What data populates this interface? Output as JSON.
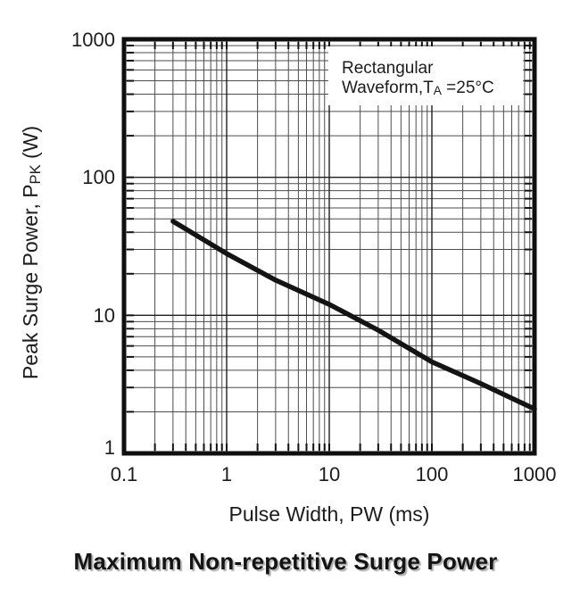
{
  "figure_title": "Maximum Non-repetitive Surge Power",
  "chart_data": {
    "type": "line",
    "title": "Maximum Non-repetitive Surge Power",
    "xlabel": "Pulse Width, PW (ms)",
    "ylabel": "Peak Surge Power, PPK (W)",
    "ylabel_parts": {
      "pre": "Peak Surge Power, P",
      "sub": "PK",
      "post": " (W)"
    },
    "x_scale": "log",
    "y_scale": "log",
    "xlim": [
      0.1,
      1000
    ],
    "ylim": [
      1,
      1000
    ],
    "x_ticks": [
      0.1,
      1,
      10,
      100,
      1000
    ],
    "x_tick_labels": [
      "0.1",
      "1",
      "10",
      "100",
      "1000"
    ],
    "y_ticks": [
      1000,
      100,
      10,
      1
    ],
    "y_tick_labels": [
      "1000",
      "100",
      "10",
      "1"
    ],
    "grid": "full log-log grid with minor decade lines, no legend",
    "annotation": {
      "line1": "Rectangular",
      "line2_pre": "Waveform,T",
      "line2_sub": "A",
      "line2_post": " =25°C"
    },
    "colors": {
      "curve": "#141414",
      "grid_minor": "#4d4d4d",
      "grid_major": "#1f1f1f",
      "frame": "#0f0f0f",
      "text": "#1c1c1c"
    },
    "series": [
      {
        "name": "Maximum non-repetitive surge power",
        "points_ms_w": [
          [
            0.3,
            48
          ],
          [
            1,
            28
          ],
          [
            3,
            18
          ],
          [
            10,
            12
          ],
          [
            30,
            7.8
          ],
          [
            100,
            4.6
          ],
          [
            300,
            3.2
          ],
          [
            1000,
            2.1
          ]
        ]
      }
    ]
  }
}
